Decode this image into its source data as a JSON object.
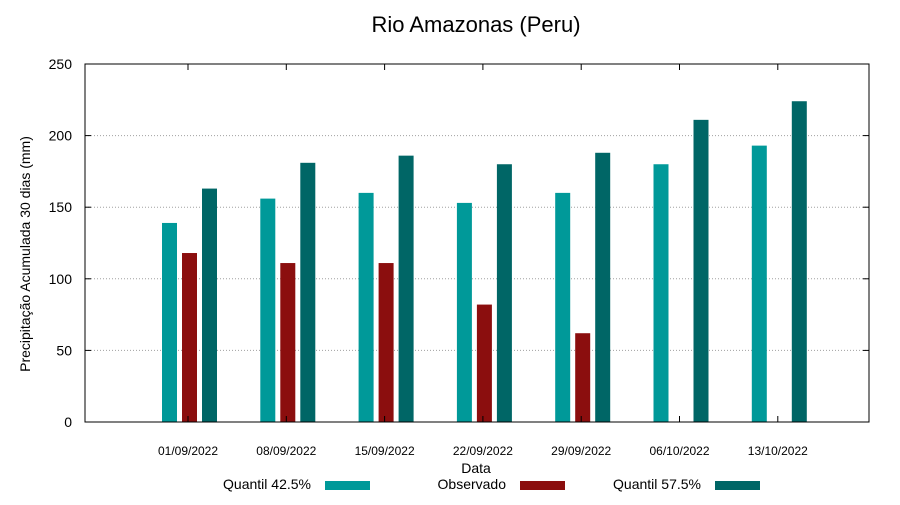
{
  "chart_data": {
    "type": "bar",
    "title": "Rio Amazonas (Peru)",
    "xlabel": "Data",
    "ylabel": "Precipitação Acumulada 30 dias (mm)",
    "ylim": [
      0,
      250
    ],
    "yticks": [
      0,
      50,
      100,
      150,
      200,
      250
    ],
    "grid": true,
    "legend_position": "bottom",
    "categories": [
      "01/09/2022",
      "08/09/2022",
      "15/09/2022",
      "22/09/2022",
      "29/09/2022",
      "06/10/2022",
      "13/10/2022"
    ],
    "series": [
      {
        "name": "Quantil 42.5%",
        "color": "#009999",
        "values": [
          139,
          156,
          160,
          153,
          160,
          180,
          193
        ]
      },
      {
        "name": "Observado",
        "color": "#8b0e0e",
        "values": [
          118,
          111,
          111,
          82,
          62,
          null,
          null
        ]
      },
      {
        "name": "Quantil 57.5%",
        "color": "#006666",
        "values": [
          163,
          181,
          186,
          180,
          188,
          211,
          224
        ]
      }
    ]
  }
}
